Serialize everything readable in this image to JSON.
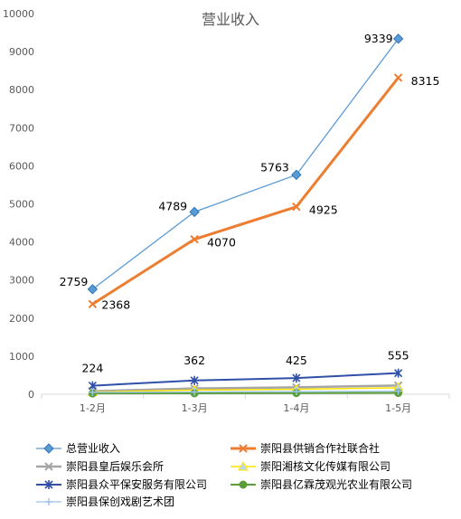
{
  "chart_data": {
    "type": "line",
    "title": "营业收入",
    "categories": [
      "1-2月",
      "1-3月",
      "1-4月",
      "1-5月"
    ],
    "ylim": [
      0,
      10000
    ],
    "yticks": [
      0,
      1000,
      2000,
      3000,
      4000,
      5000,
      6000,
      7000,
      8000,
      9000,
      10000
    ],
    "grid": false,
    "legend_position": "bottom",
    "series": [
      {
        "name": "总营业收入",
        "values": [
          2759,
          4789,
          5763,
          9339
        ],
        "color": "#5b9bd5",
        "marker": "diamond",
        "labels": [
          "2759",
          "4789",
          "5763",
          "9339"
        ]
      },
      {
        "name": "崇阳县供销合作社联合社",
        "values": [
          2368,
          4070,
          4925,
          8315
        ],
        "color": "#ed7d31",
        "marker": "x",
        "labels": [
          "2368",
          "4070",
          "4925",
          "8315"
        ]
      },
      {
        "name": "崇阳县皇后娱乐会所",
        "values": [
          80,
          150,
          180,
          230
        ],
        "color": "#a5a5a5",
        "marker": "x",
        "labels": []
      },
      {
        "name": "崇阳湘核文化传媒有限公司",
        "values": [
          60,
          110,
          130,
          170
        ],
        "color": "#ffe400",
        "marker": "triangle",
        "labels": []
      },
      {
        "name": "崇阳县众平保安服务有限公司",
        "values": [
          224,
          362,
          425,
          555
        ],
        "color": "#2f4fa8",
        "marker": "star",
        "labels": [
          "224",
          "362",
          "425",
          "555"
        ]
      },
      {
        "name": "崇阳县亿霖茂观光农业有限公司",
        "values": [
          20,
          25,
          30,
          35
        ],
        "color": "#5a9e3a",
        "marker": "circle",
        "labels": []
      },
      {
        "name": "崇阳县保创戏剧艺术团",
        "values": [
          50,
          60,
          70,
          80
        ],
        "color": "#9dc3e6",
        "marker": "plus",
        "labels": []
      }
    ]
  }
}
